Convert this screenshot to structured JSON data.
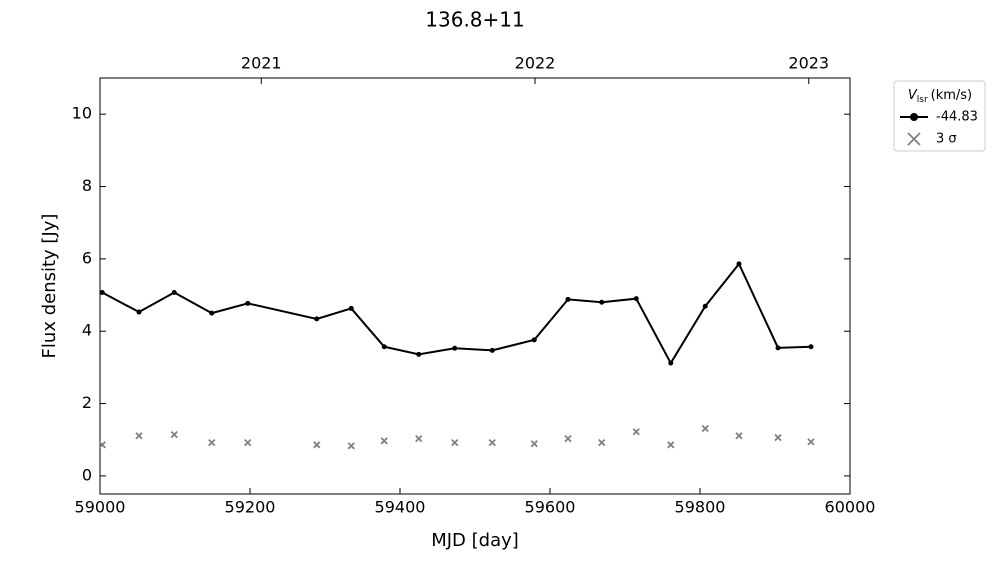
{
  "chart_data": {
    "type": "line",
    "title": "136.8+11",
    "x_label": "MJD [day]",
    "y_label": "Flux density [Jy]",
    "xlim": [
      59000,
      60000
    ],
    "xticks": [
      59000,
      59200,
      59400,
      59600,
      59800,
      60000
    ],
    "x2ticks": [
      {
        "value": 59215,
        "label": "2021"
      },
      {
        "value": 59580,
        "label": "2022"
      },
      {
        "value": 59945,
        "label": "2023"
      }
    ],
    "ylim": [
      -0.5,
      11
    ],
    "yticks": [
      0,
      2,
      4,
      6,
      8,
      10
    ],
    "legend": "outside upper right",
    "legend_title": {
      "symbol": "V",
      "subscript": "lsr",
      "unit": "(km/s)"
    },
    "x": [
      59003,
      59052,
      59099,
      59149,
      59197,
      59289,
      59335,
      59379,
      59425,
      59473,
      59523,
      59579,
      59624,
      59669,
      59715,
      59761,
      59807,
      59852,
      59904,
      59948
    ],
    "series": [
      {
        "name": "-44.83",
        "color": "#000000",
        "marker": "dot",
        "line": true,
        "values": [
          5.07,
          4.53,
          5.07,
          4.5,
          4.77,
          4.34,
          4.63,
          3.57,
          3.36,
          3.53,
          3.47,
          3.76,
          4.88,
          4.8,
          4.9,
          3.12,
          4.69,
          5.86,
          3.54,
          3.57
        ]
      },
      {
        "name": "3 σ",
        "color": "#808080",
        "marker": "x",
        "line": false,
        "values": [
          0.86,
          1.11,
          1.14,
          0.92,
          0.92,
          0.86,
          0.83,
          0.97,
          1.03,
          0.92,
          0.92,
          0.89,
          1.03,
          0.92,
          1.22,
          0.86,
          1.31,
          1.11,
          1.06,
          0.94
        ]
      }
    ]
  }
}
